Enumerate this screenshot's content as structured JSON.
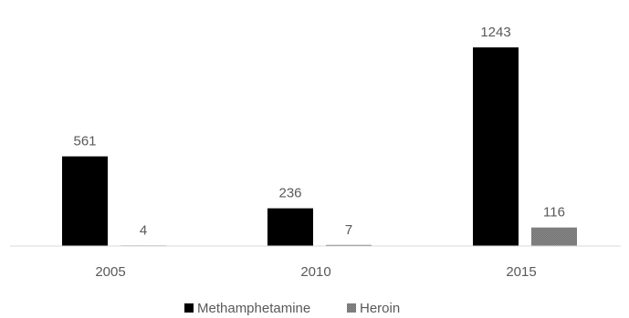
{
  "chart_data": {
    "type": "bar",
    "categories": [
      "2005",
      "2010",
      "2015"
    ],
    "series": [
      {
        "name": "Methamphetamine",
        "values": [
          561,
          236,
          1243
        ],
        "color": "#000000"
      },
      {
        "name": "Heroin",
        "values": [
          4,
          7,
          116
        ],
        "color": "#808080"
      }
    ],
    "ylim": [
      0,
      1243
    ],
    "grid": false,
    "legend_position": "bottom"
  }
}
